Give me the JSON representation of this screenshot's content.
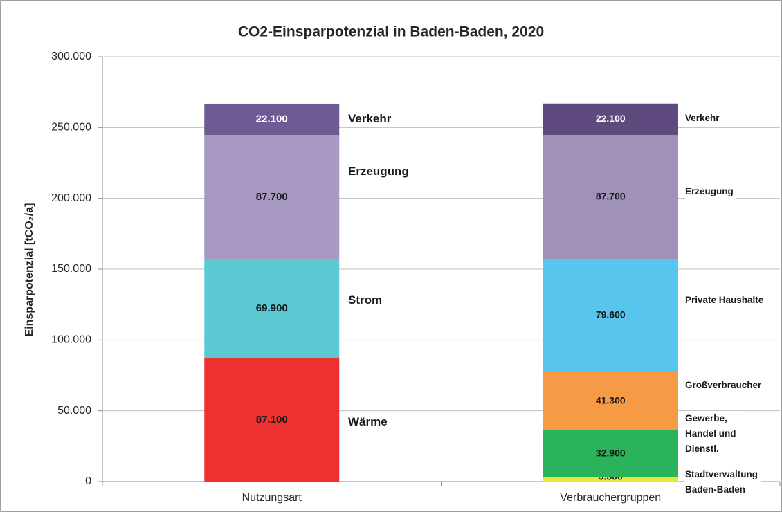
{
  "chart_data": {
    "type": "stacked_bar",
    "title": "CO2-Einsparpotenzial in Baden-Baden, 2020",
    "y_label": "Einsparpotenzial [tCO₂/a]",
    "categories": [
      "Nutzungsart",
      "Verbrauchergruppen"
    ],
    "stacks": [
      [
        {
          "name": "Wärme",
          "value": 87100,
          "value_label": "87.100",
          "color": "#ef3030"
        },
        {
          "name": "Strom",
          "value": 69900,
          "value_label": "69.900",
          "color": "#5bc8d4"
        },
        {
          "name": "Erzeugung",
          "value": 87700,
          "value_label": "87.700",
          "color": "#a899c2"
        },
        {
          "name": "Verkehr",
          "value": 22100,
          "value_label": "22.100",
          "color": "#6e5b96"
        }
      ],
      [
        {
          "name": "Stadtverwaltung\nBaden-Baden",
          "value": 3300,
          "value_label": "3.300",
          "color": "#e8e83a"
        },
        {
          "name": "Gewerbe,\nHandel und\nDienstl.",
          "value": 32900,
          "value_label": "32.900",
          "color": "#2ab35a"
        },
        {
          "name": "Großverbraucher",
          "value": 41300,
          "value_label": "41.300",
          "color": "#f79a45"
        },
        {
          "name": "Private Haushalte",
          "value": 79600,
          "value_label": "79.600",
          "color": "#57c5ee"
        },
        {
          "name": "Erzeugung",
          "value": 87700,
          "value_label": "87.700",
          "color": "#9f91b8"
        },
        {
          "name": "Verkehr",
          "value": 22100,
          "value_label": "22.100",
          "color": "#5e4a7e"
        }
      ]
    ],
    "ylim": [
      0,
      300000
    ],
    "yticks": [
      {
        "value": 0,
        "label": "0"
      },
      {
        "value": 50000,
        "label": "50.000"
      },
      {
        "value": 100000,
        "label": "100.000"
      },
      {
        "value": 150000,
        "label": "150.000"
      },
      {
        "value": 200000,
        "label": "200.000"
      },
      {
        "value": 250000,
        "label": "250.000"
      },
      {
        "value": 300000,
        "label": "300.000"
      }
    ],
    "grid": true
  }
}
